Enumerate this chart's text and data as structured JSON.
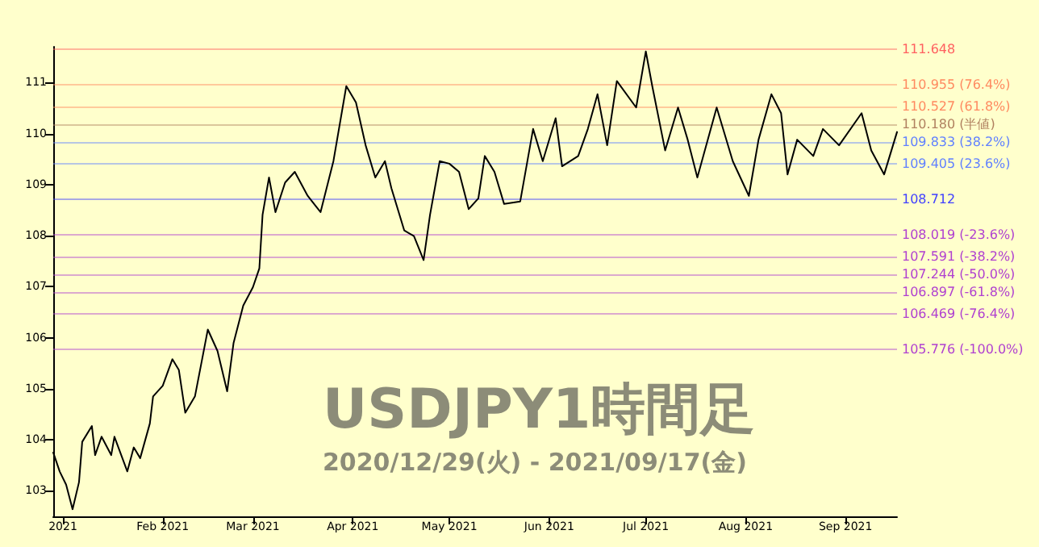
{
  "chart_data": {
    "type": "line",
    "title": "USDJPY1時間足",
    "subtitle": "2020/12/29(火) - 2021/09/17(金)",
    "x": [
      "2020-12-29",
      "2020-12-31",
      "2021-01-02",
      "2021-01-04",
      "2021-01-06",
      "2021-01-07",
      "2021-01-10",
      "2021-01-11",
      "2021-01-13",
      "2021-01-16",
      "2021-01-17",
      "2021-01-21",
      "2021-01-23",
      "2021-01-25",
      "2021-01-28",
      "2021-01-29",
      "2021-02-01",
      "2021-02-04",
      "2021-02-06",
      "2021-02-08",
      "2021-02-11",
      "2021-02-15",
      "2021-02-18",
      "2021-02-21",
      "2021-02-23",
      "2021-02-26",
      "2021-03-01",
      "2021-03-03",
      "2021-03-04",
      "2021-03-06",
      "2021-03-08",
      "2021-03-11",
      "2021-03-14",
      "2021-03-18",
      "2021-03-22",
      "2021-03-26",
      "2021-03-30",
      "2021-04-02",
      "2021-04-05",
      "2021-04-08",
      "2021-04-11",
      "2021-04-13",
      "2021-04-17",
      "2021-04-20",
      "2021-04-23",
      "2021-04-25",
      "2021-04-28",
      "2021-05-01",
      "2021-05-04",
      "2021-05-07",
      "2021-05-10",
      "2021-05-12",
      "2021-05-15",
      "2021-05-18",
      "2021-05-23",
      "2021-05-27",
      "2021-05-30",
      "2021-06-03",
      "2021-06-05",
      "2021-06-10",
      "2021-06-13",
      "2021-06-16",
      "2021-06-19",
      "2021-06-22",
      "2021-06-28",
      "2021-07-01",
      "2021-07-03",
      "2021-07-07",
      "2021-07-11",
      "2021-07-14",
      "2021-07-17",
      "2021-07-23",
      "2021-07-28",
      "2021-08-02",
      "2021-08-05",
      "2021-08-09",
      "2021-08-12",
      "2021-08-14",
      "2021-08-17",
      "2021-08-22",
      "2021-08-25",
      "2021-08-30",
      "2021-09-06",
      "2021-09-09",
      "2021-09-13",
      "2021-09-17"
    ],
    "series": [
      {
        "color": "#000000",
        "values": [
          103.75,
          103.38,
          103.12,
          102.64,
          103.17,
          103.96,
          104.27,
          103.7,
          104.06,
          103.7,
          104.06,
          103.38,
          103.85,
          103.64,
          104.32,
          104.85,
          105.06,
          105.58,
          105.37,
          104.53,
          104.85,
          106.16,
          105.74,
          104.95,
          105.9,
          106.63,
          106.99,
          107.36,
          108.41,
          109.14,
          108.46,
          109.04,
          109.25,
          108.78,
          108.46,
          109.46,
          110.93,
          110.61,
          109.77,
          109.14,
          109.46,
          108.93,
          108.1,
          107.99,
          107.52,
          108.41,
          109.46,
          109.41,
          109.25,
          108.52,
          108.73,
          109.56,
          109.25,
          108.62,
          108.67,
          110.09,
          109.46,
          110.3,
          109.36,
          109.56,
          110.09,
          110.77,
          109.77,
          111.03,
          110.51,
          111.61,
          110.93,
          109.67,
          110.51,
          109.88,
          109.14,
          110.51,
          109.46,
          108.78,
          109.88,
          110.77,
          110.4,
          109.2,
          109.88,
          109.56,
          110.09,
          109.77,
          110.4,
          109.67,
          109.2,
          110.03
        ]
      }
    ],
    "xlim": [
      "2020-12-29",
      "2021-09-17"
    ],
    "xticks": [
      {
        "value": "2021-01-01",
        "label": "2021"
      },
      {
        "value": "2021-02-01",
        "label": "Feb 2021"
      },
      {
        "value": "2021-03-01",
        "label": "Mar 2021"
      },
      {
        "value": "2021-04-01",
        "label": "Apr 2021"
      },
      {
        "value": "2021-05-01",
        "label": "May 2021"
      },
      {
        "value": "2021-06-01",
        "label": "Jun 2021"
      },
      {
        "value": "2021-07-01",
        "label": "Jul 2021"
      },
      {
        "value": "2021-08-01",
        "label": "Aug 2021"
      },
      {
        "value": "2021-09-01",
        "label": "Sep 2021"
      }
    ],
    "ylim": [
      102.5,
      111.7
    ],
    "yticks": [
      103,
      104,
      105,
      106,
      107,
      108,
      109,
      110,
      111
    ],
    "marker": "none",
    "line_style": "solid",
    "ref_lines": [
      {
        "axis": "y",
        "value": 111.648,
        "label": "111.648",
        "color": "#ff6060"
      },
      {
        "axis": "y",
        "value": 110.955,
        "label": "110.955 (76.4%)",
        "color": "#ff8a60"
      },
      {
        "axis": "y",
        "value": 110.527,
        "label": "110.527 (61.8%)",
        "color": "#ff8a60"
      },
      {
        "axis": "y",
        "value": 110.18,
        "label": "110.180 (半値)",
        "color": "#b08060"
      },
      {
        "axis": "y",
        "value": 109.833,
        "label": "109.833 (38.2%)",
        "color": "#6080ff"
      },
      {
        "axis": "y",
        "value": 109.405,
        "label": "109.405 (23.6%)",
        "color": "#6080ff"
      },
      {
        "axis": "y",
        "value": 108.712,
        "label": "108.712",
        "color": "#4040ff"
      },
      {
        "axis": "y",
        "value": 108.019,
        "label": "108.019 (-23.6%)",
        "color": "#b040d0"
      },
      {
        "axis": "y",
        "value": 107.591,
        "label": "107.591 (-38.2%)",
        "color": "#b040d0"
      },
      {
        "axis": "y",
        "value": 107.244,
        "label": "107.244 (-50.0%)",
        "color": "#b040d0"
      },
      {
        "axis": "y",
        "value": 106.897,
        "label": "106.897 (-61.8%)",
        "color": "#b040d0"
      },
      {
        "axis": "y",
        "value": 106.469,
        "label": "106.469 (-76.4%)",
        "color": "#b040d0"
      },
      {
        "axis": "y",
        "value": 105.776,
        "label": "105.776 (-100.0%)",
        "color": "#b040d0"
      }
    ]
  }
}
